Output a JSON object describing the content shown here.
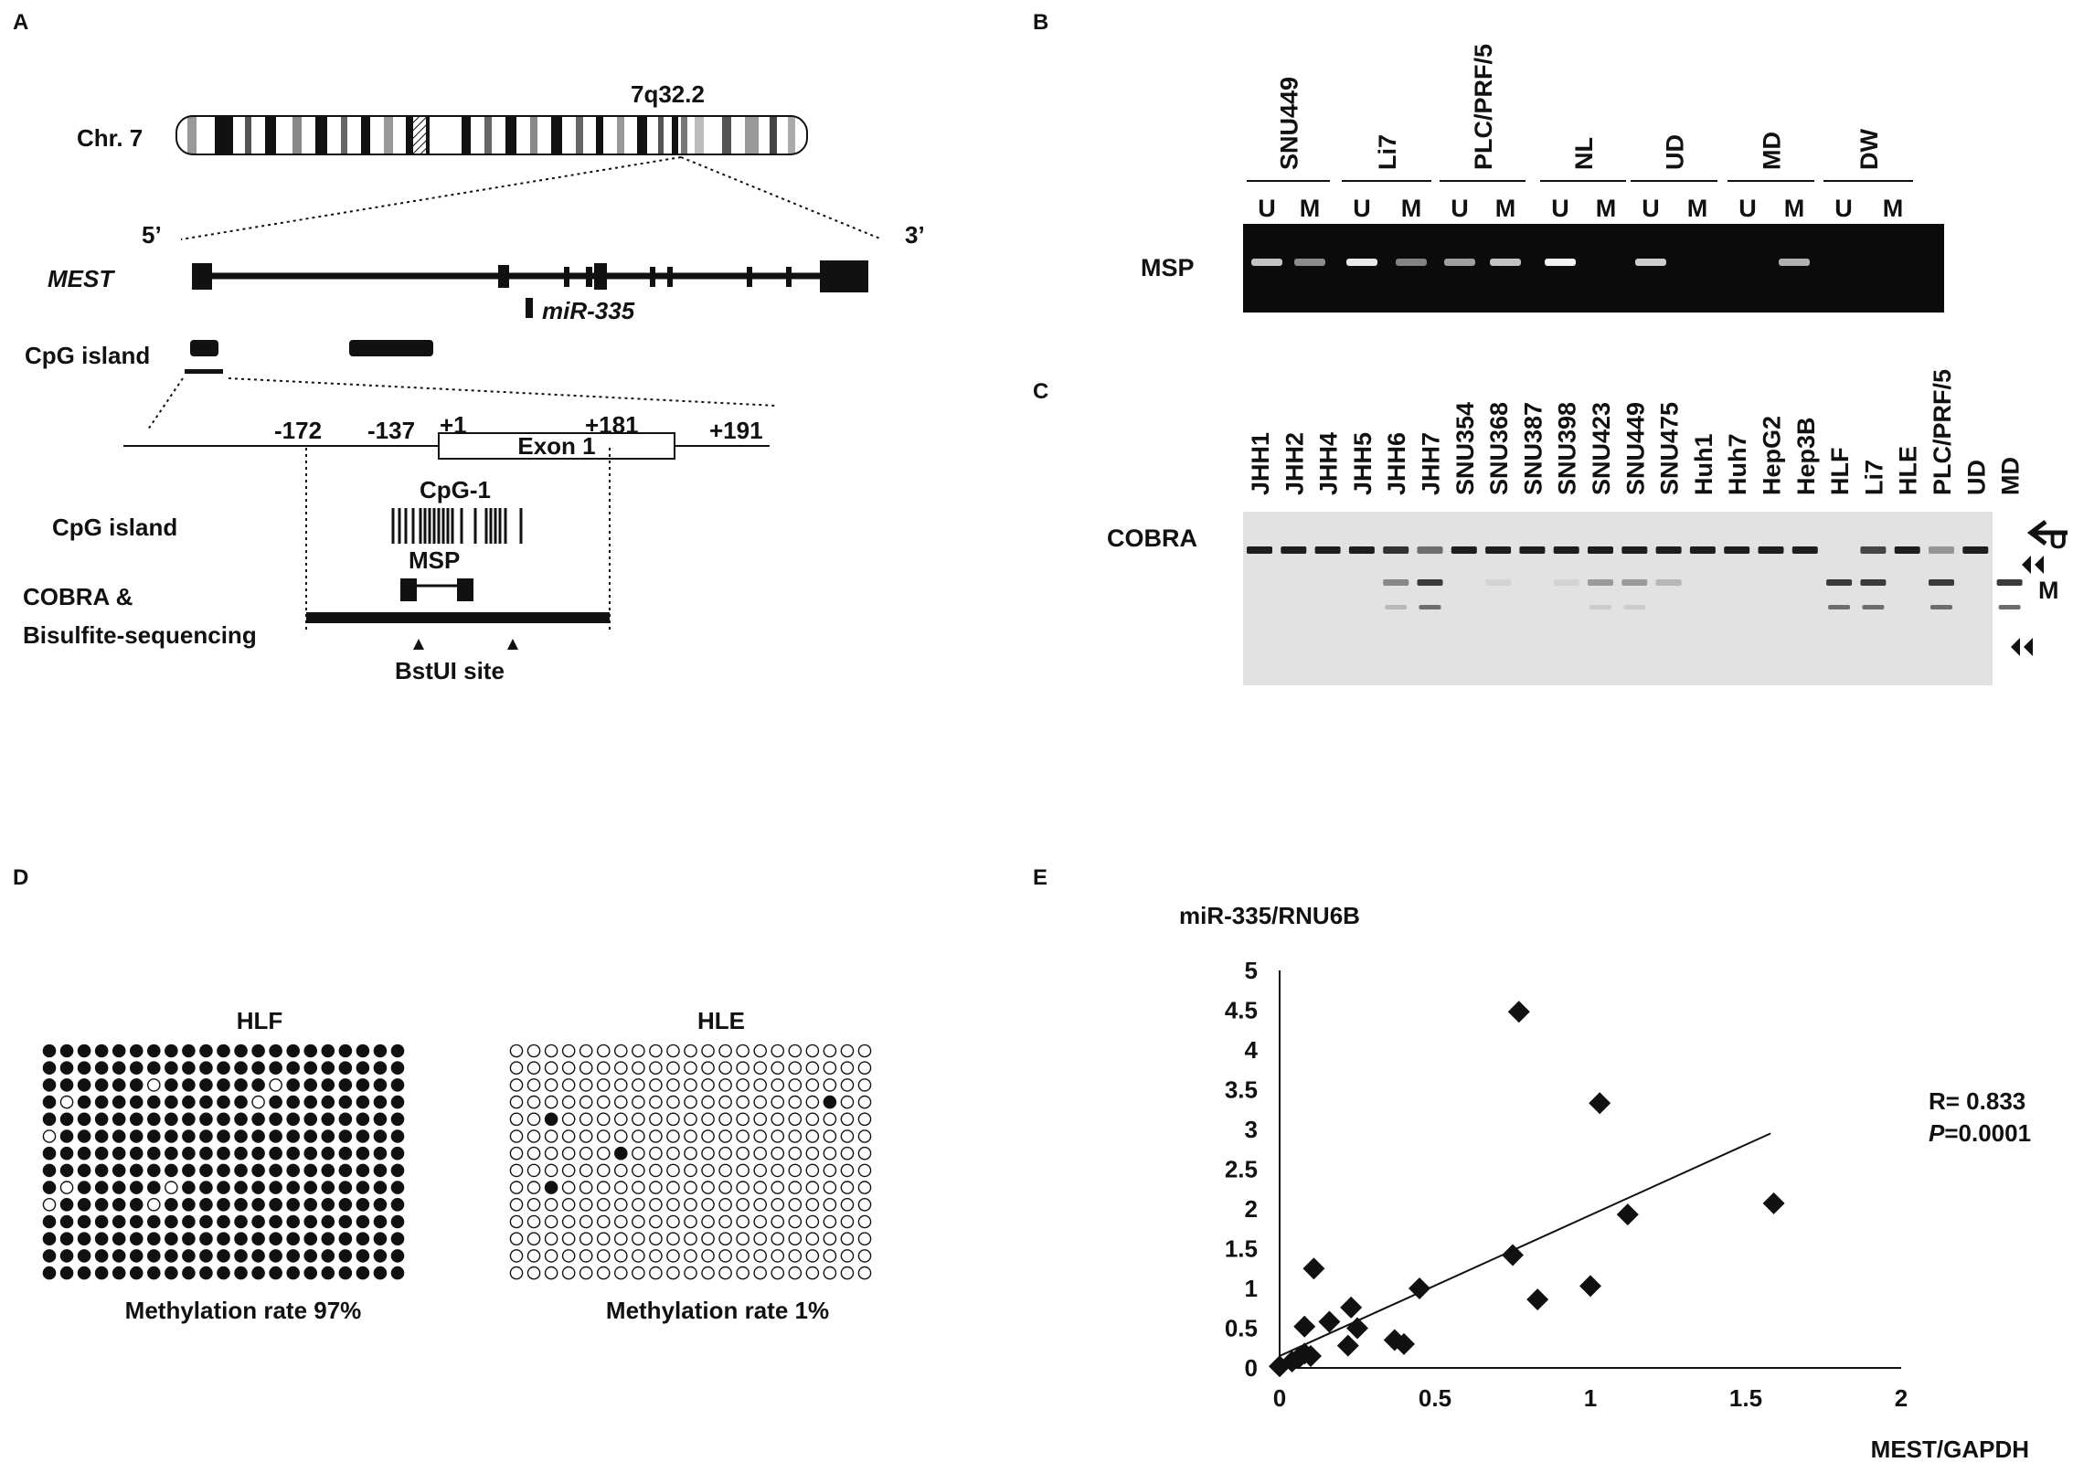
{
  "panels": {
    "a": "A",
    "b": "B",
    "c": "C",
    "d": "D",
    "e": "E"
  },
  "panel_a": {
    "chromosome_label": "Chr. 7",
    "locus": "7q32.2",
    "five_prime": "5’",
    "three_prime": "3’",
    "gene": "MEST",
    "mirna": "miR-335",
    "cpg_island_label_1": "CpG island",
    "positions": [
      "-172",
      "-137",
      "+1",
      "+181",
      "+191"
    ],
    "exon_label": "Exon 1",
    "cpg1_label": "CpG-1",
    "cpg_island_label_2": "CpG island",
    "msp_label": "MSP",
    "cobra_label_line1": "COBRA &",
    "cobra_label_line2": "Bisulfite-sequencing",
    "bstui_label": "BstUI site"
  },
  "panel_b": {
    "method_label": "MSP",
    "groups": [
      "SNU449",
      "Li7",
      "PLC/PRF/5",
      "NL",
      "UD",
      "MD",
      "DW"
    ],
    "lane_labels": [
      "U",
      "M",
      "U",
      "M",
      "U",
      "M",
      "U",
      "M",
      "U",
      "M",
      "U",
      "M",
      "U",
      "M"
    ],
    "band_intensity": [
      0.75,
      0.45,
      0.95,
      0.4,
      0.55,
      0.75,
      1.0,
      0,
      0.8,
      0,
      0,
      0.65,
      0,
      0
    ]
  },
  "panel_c": {
    "method_label": "COBRA",
    "lanes": [
      "JHH1",
      "JHH2",
      "JHH4",
      "JHH5",
      "JHH6",
      "JHH7",
      "SNU354",
      "SNU368",
      "SNU387",
      "SNU398",
      "SNU423",
      "SNU449",
      "SNU475",
      "Huh1",
      "Huh7",
      "HepG2",
      "Hep3B",
      "HLF",
      "Li7",
      "HLE",
      "PLC/PRF/5",
      "UD",
      "MD"
    ],
    "u_label": "U",
    "m_label": "M",
    "u_band": [
      1,
      1,
      1,
      1,
      0.9,
      0.6,
      1,
      1,
      1,
      1,
      1,
      1,
      1,
      1,
      1,
      1,
      1,
      0,
      0.8,
      1,
      0.4,
      1,
      0
    ],
    "m_band": [
      0,
      0,
      0,
      0,
      0.5,
      0.9,
      0,
      0.1,
      0,
      0.1,
      0.4,
      0.4,
      0.25,
      0,
      0,
      0,
      0,
      0.9,
      0.9,
      0,
      0.9,
      0,
      0.9
    ]
  },
  "panel_d": {
    "grids": [
      {
        "title": "HLF",
        "caption": "Methylation rate 97%",
        "rows": [
          "111111111111111111111",
          "111111111111111111111",
          "111111011111101111111",
          "101111111111011111111",
          "111111111111111111111",
          "011111111111111111111",
          "111111111111111111111",
          "111111111111111111111",
          "101111101111111111111",
          "011111011111111111111",
          "111111111111111111111",
          "111111111111111111111",
          "111111111111111111111",
          "111111111111111111111"
        ]
      },
      {
        "title": "HLE",
        "caption": "Methylation rate 1%",
        "rows": [
          "000000000000000000000",
          "000000000000000000000",
          "000000000000000000000",
          "000000000000000000100",
          "001000000000000000000",
          "000000000000000000000",
          "000000100000000000000",
          "000000000000000000000",
          "001000000000000000000",
          "000000000000000000000",
          "000000000000000000000",
          "000000000000000000000",
          "000000000000000000000",
          "000000000000000000000"
        ]
      }
    ]
  },
  "chart_data": {
    "type": "scatter",
    "title": "",
    "xlabel": "MEST/GAPDH",
    "ylabel": "miR-335/RNU6B",
    "xlim": [
      0,
      2
    ],
    "ylim": [
      0,
      5
    ],
    "x_ticks": [
      "0",
      "0.5",
      "1",
      "1.5",
      "2"
    ],
    "y_ticks": [
      "0",
      "0.5",
      "1",
      "1.5",
      "2",
      "2.5",
      "3",
      "3.5",
      "4",
      "4.5",
      "5"
    ],
    "points": [
      {
        "x": 0.0,
        "y": 0.02
      },
      {
        "x": 0.04,
        "y": 0.08
      },
      {
        "x": 0.06,
        "y": 0.12
      },
      {
        "x": 0.08,
        "y": 0.18
      },
      {
        "x": 0.1,
        "y": 0.15
      },
      {
        "x": 0.08,
        "y": 0.52
      },
      {
        "x": 0.11,
        "y": 1.25
      },
      {
        "x": 0.16,
        "y": 0.58
      },
      {
        "x": 0.22,
        "y": 0.28
      },
      {
        "x": 0.23,
        "y": 0.76
      },
      {
        "x": 0.25,
        "y": 0.5
      },
      {
        "x": 0.37,
        "y": 0.35
      },
      {
        "x": 0.4,
        "y": 0.3
      },
      {
        "x": 0.45,
        "y": 1.0
      },
      {
        "x": 0.75,
        "y": 1.42
      },
      {
        "x": 0.77,
        "y": 4.48
      },
      {
        "x": 0.83,
        "y": 0.86
      },
      {
        "x": 1.0,
        "y": 1.03
      },
      {
        "x": 1.03,
        "y": 3.33
      },
      {
        "x": 1.12,
        "y": 1.93
      },
      {
        "x": 1.59,
        "y": 2.07
      }
    ],
    "trendline": {
      "x": [
        0.0,
        1.58
      ],
      "y": [
        0.15,
        2.95
      ]
    },
    "annotation_r": "R= 0.833",
    "annotation_p_italic": "P",
    "annotation_p_value": "=0.0001",
    "grid": false,
    "legend": "none"
  }
}
